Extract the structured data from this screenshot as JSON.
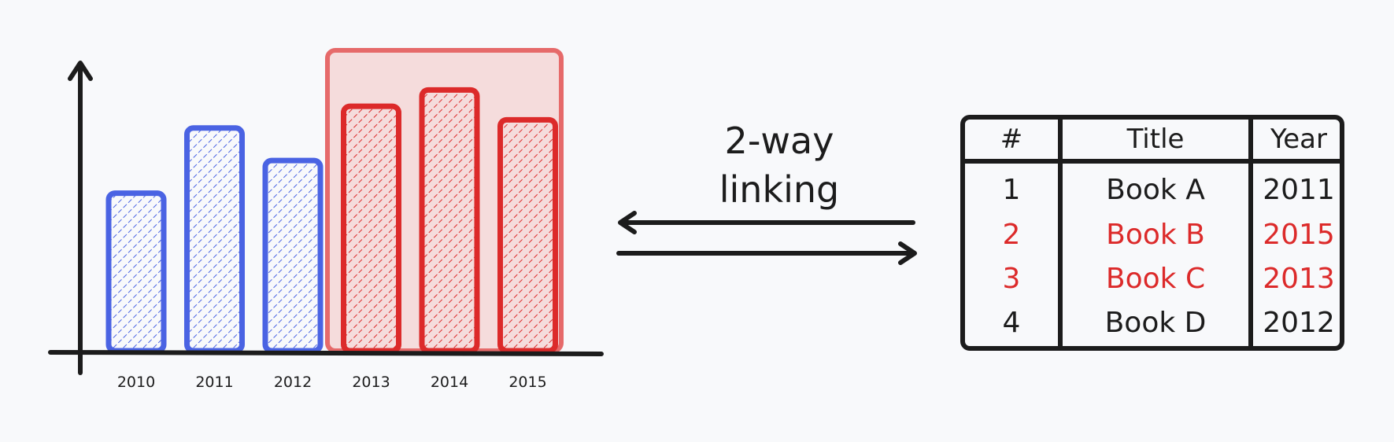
{
  "chart_data": {
    "type": "bar",
    "categories": [
      "2010",
      "2011",
      "2012",
      "2013",
      "2014",
      "2015"
    ],
    "values": [
      58,
      82,
      70,
      90,
      96,
      85
    ],
    "highlighted": [
      "2013",
      "2014",
      "2015"
    ],
    "ylim": [
      0,
      110
    ],
    "grid": false,
    "xlabel": "",
    "ylabel": "",
    "title": ""
  },
  "link_label": [
    "2-way",
    "linking"
  ],
  "table": {
    "headers": {
      "num": "#",
      "title": "Title",
      "year": "Year"
    },
    "rows": [
      {
        "num": "1",
        "title": "Book A",
        "year": "2011"
      },
      {
        "num": "2",
        "title": "Book B",
        "year": "2015"
      },
      {
        "num": "3",
        "title": "Book C",
        "year": "2013"
      },
      {
        "num": "4",
        "title": "Book D",
        "year": "2012"
      }
    ],
    "highlighted_rows": [
      1,
      2
    ]
  },
  "colors": {
    "unselected": "#4a63e3",
    "selected": "#dc2a2a",
    "selection_fill": "#f5dcdc",
    "ink": "#1c1c1c"
  }
}
